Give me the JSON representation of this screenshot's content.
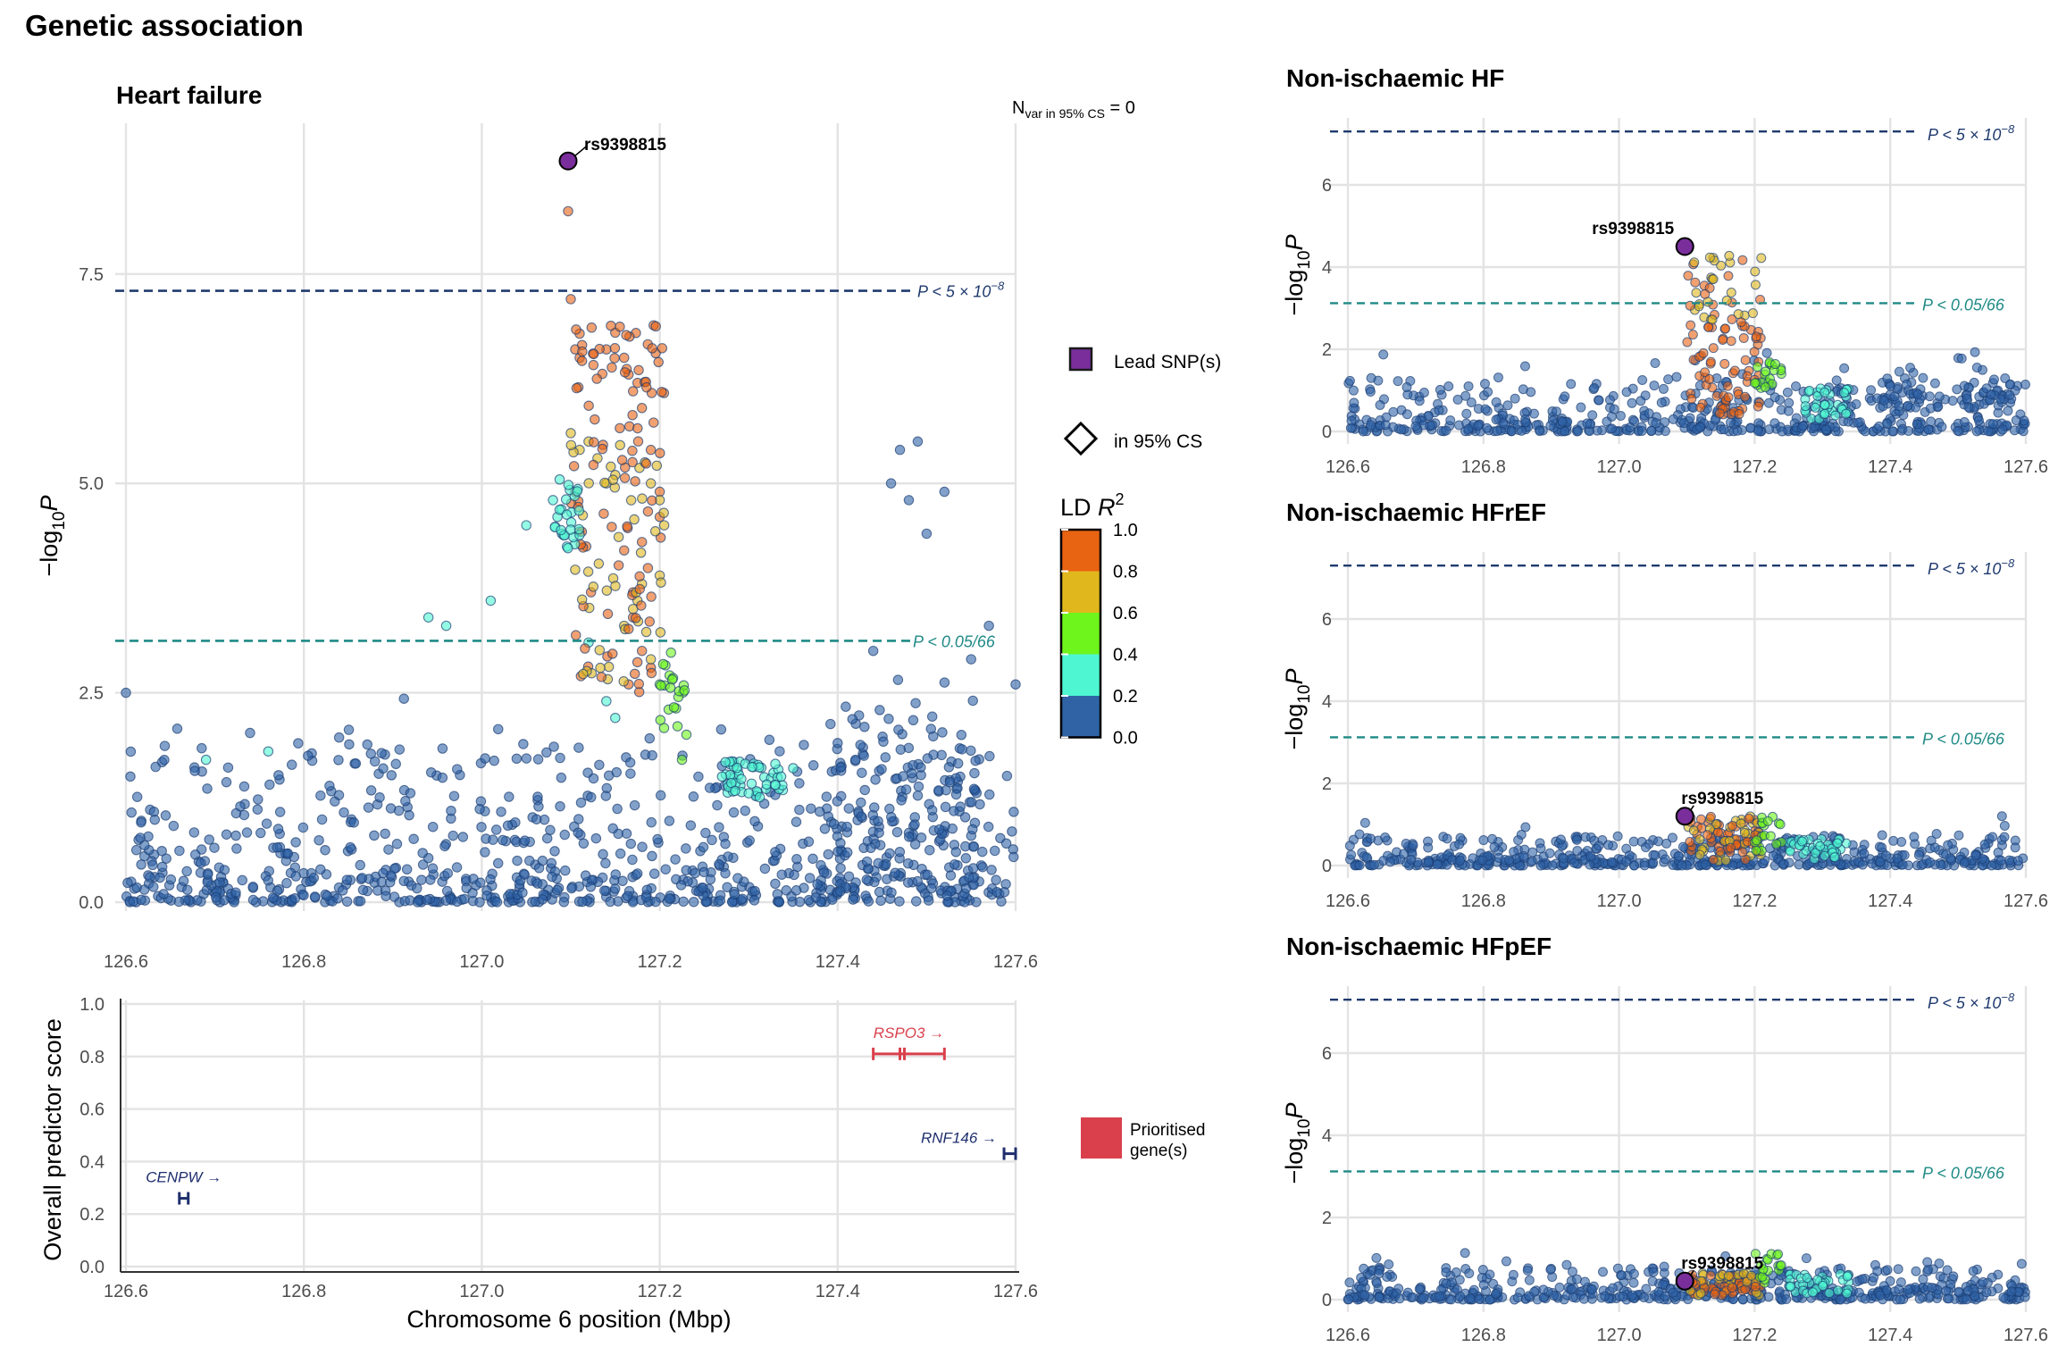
{
  "figure_title": "Genetic association",
  "colors": {
    "r2_bins": [
      "#2f63a6",
      "#4ef7d2",
      "#6ef51c",
      "#e0b81e",
      "#e86312"
    ],
    "lead": "#7a2e9c",
    "threshold_gw": "#1f3a6e",
    "threshold_sugg": "#1f8a86",
    "prioritised": "#d9404c",
    "gene_other": "#1f2f6e"
  },
  "main_panel": {
    "title": "Heart failure",
    "nvar_label": "N",
    "nvar_sub": "var in 95% CS",
    "nvar_value": " = 0",
    "ylabel": "−log",
    "ylabel_sub": "10",
    "ylabel_p": "P",
    "xticks": [
      "126.6",
      "126.8",
      "127.0",
      "127.2",
      "127.4",
      "127.6"
    ],
    "yticks": [
      "0.0",
      "2.5",
      "5.0",
      "7.5"
    ],
    "lead_label": "rs9398815",
    "threshold_gw_label": "P < 5 × 10",
    "threshold_gw_exp": "−8",
    "threshold_sugg_label": "P < 0.05/66"
  },
  "gene_panel": {
    "ylabel": "Overall predictor score",
    "xlabel": "Chromosome 6 position (Mbp)",
    "xticks": [
      "126.6",
      "126.8",
      "127.0",
      "127.2",
      "127.4",
      "127.6"
    ],
    "yticks": [
      "0.0",
      "0.2",
      "0.4",
      "0.6",
      "0.8",
      "1.0"
    ],
    "genes": [
      {
        "name": "CENPW",
        "arrow": " →",
        "start": 126.66,
        "end": 126.67,
        "score": 0.26,
        "prioritised": false
      },
      {
        "name": "RSPO3",
        "arrow": " →",
        "start": 127.44,
        "end": 127.52,
        "score": 0.81,
        "prioritised": true
      },
      {
        "name": "RNF146",
        "arrow": " →",
        "start": 127.587,
        "end": 127.6,
        "score": 0.43,
        "prioritised": false
      }
    ]
  },
  "legend": {
    "lead_snp": "Lead SNP(s)",
    "in_cs": "in 95% CS",
    "ld_title": "LD ",
    "ld_r": "R",
    "ld_sup": "2",
    "ld_ticks": [
      "1.0",
      "0.8",
      "0.6",
      "0.4",
      "0.2",
      "0.0"
    ],
    "prioritised_line1": "Prioritised",
    "prioritised_line2": "gene(s)"
  },
  "sub_panels": [
    {
      "title": "Non-ischaemic HF",
      "lead_y": 4.5,
      "lead_label": "rs9398815"
    },
    {
      "title": "Non-ischaemic HFrEF",
      "lead_y": 1.2,
      "lead_label": "rs9398815"
    },
    {
      "title": "Non-ischaemic HFpEF",
      "lead_y": 0.45,
      "lead_label": "rs9398815"
    }
  ],
  "sub_common": {
    "ylabel": "−log",
    "ylabel_sub": "10",
    "ylabel_p": "P",
    "xticks": [
      "126.6",
      "126.8",
      "127.0",
      "127.2",
      "127.4",
      "127.6"
    ],
    "yticks": [
      "0",
      "2",
      "4",
      "6"
    ],
    "threshold_gw_label": "P < 5 × 10",
    "threshold_gw_exp": "−8",
    "threshold_sugg_label": "P < 0.05/66"
  },
  "chart_data": [
    {
      "type": "scatter",
      "title": "Heart failure",
      "xlabel": "",
      "ylabel": "−log10 P",
      "xlim": [
        126.6,
        127.6
      ],
      "ylim": [
        0,
        9.3
      ],
      "thresholds": [
        7.3,
        3.12
      ],
      "lead": {
        "name": "rs9398815",
        "x": 127.097,
        "y": 8.85
      },
      "color_by": "LD R2",
      "clusters": [
        {
          "r2_bin": 4,
          "x": [
            127.097,
            127.1,
            127.105,
            127.11,
            127.125,
            127.14,
            127.15,
            127.16,
            127.165,
            127.17,
            127.175,
            127.18,
            127.19,
            127.2,
            127.2,
            127.18,
            127.17,
            127.16,
            127.17,
            127.18,
            127.19,
            127.165
          ],
          "y": [
            8.25,
            7.2,
            6.6,
            6.5,
            6.55,
            6.6,
            6.8,
            6.5,
            6.3,
            6.1,
            6.2,
            5.9,
            5.4,
            4.9,
            4.6,
            4.3,
            3.7,
            4.2,
            3.4,
            3.0,
            2.8,
            2.6
          ]
        },
        {
          "r2_bin": 3,
          "x": [
            127.1,
            127.11,
            127.12,
            127.13,
            127.14,
            127.145,
            127.15,
            127.19,
            127.2,
            127.205,
            127.2,
            127.18,
            127.175,
            127.16,
            127.17,
            127.19
          ],
          "y": [
            5.6,
            5.4,
            5.5,
            5.3,
            5.0,
            5.2,
            5.1,
            5.0,
            4.8,
            4.5,
            3.9,
            3.8,
            3.6,
            3.3,
            3.5,
            2.9
          ]
        },
        {
          "r2_bin": 2,
          "x": [
            127.2,
            127.21,
            127.22,
            127.23,
            127.225
          ],
          "y": [
            2.6,
            2.3,
            2.1,
            2.0,
            1.7
          ]
        },
        {
          "r2_bin": 1,
          "x": [
            126.69,
            126.76,
            126.94,
            126.96,
            127.01,
            127.05,
            127.08,
            127.085,
            127.09,
            127.12,
            127.14,
            127.15,
            127.27,
            127.3,
            127.33,
            127.35
          ],
          "y": [
            1.7,
            1.8,
            3.4,
            3.3,
            3.6,
            4.5,
            4.8,
            4.6,
            4.4,
            3.1,
            2.4,
            2.2,
            1.5,
            1.3,
            1.4,
            1.6
          ]
        },
        {
          "r2_bin": 0,
          "x": [
            126.6,
            126.605,
            127.4,
            127.42,
            127.44,
            127.46,
            127.47,
            127.48,
            127.49,
            127.5,
            127.52,
            127.55,
            127.57,
            127.6
          ],
          "y": [
            2.5,
            1.5,
            1.9,
            1.7,
            3.0,
            5.0,
            5.4,
            4.8,
            5.5,
            4.4,
            4.9,
            2.9,
            3.3,
            2.6
          ]
        }
      ]
    },
    {
      "type": "scatter",
      "title": "Non-ischaemic HF",
      "ylabel": "−log10 P",
      "xlim": [
        126.6,
        127.6
      ],
      "ylim": [
        0,
        7.5
      ],
      "thresholds": [
        7.3,
        3.12
      ],
      "lead": {
        "name": "rs9398815",
        "x": 127.097,
        "y": 4.5
      }
    },
    {
      "type": "scatter",
      "title": "Non-ischaemic HFrEF",
      "ylabel": "−log10 P",
      "xlim": [
        126.6,
        127.6
      ],
      "ylim": [
        0,
        7.5
      ],
      "thresholds": [
        7.3,
        3.12
      ],
      "lead": {
        "name": "rs9398815",
        "x": 127.097,
        "y": 1.2
      }
    },
    {
      "type": "scatter",
      "title": "Non-ischaemic HFpEF",
      "ylabel": "−log10 P",
      "xlim": [
        126.6,
        127.6
      ],
      "ylim": [
        0,
        7.5
      ],
      "thresholds": [
        7.3,
        3.12
      ],
      "lead": {
        "name": "rs9398815",
        "x": 127.097,
        "y": 0.45
      }
    },
    {
      "type": "bar",
      "title": "",
      "xlabel": "Chromosome 6 position (Mbp)",
      "ylabel": "Overall predictor score",
      "xlim": [
        126.6,
        127.6
      ],
      "ylim": [
        0,
        1
      ],
      "genes": [
        {
          "name": "CENPW",
          "score": 0.26
        },
        {
          "name": "RSPO3",
          "score": 0.81
        },
        {
          "name": "RNF146",
          "score": 0.43
        }
      ]
    }
  ]
}
